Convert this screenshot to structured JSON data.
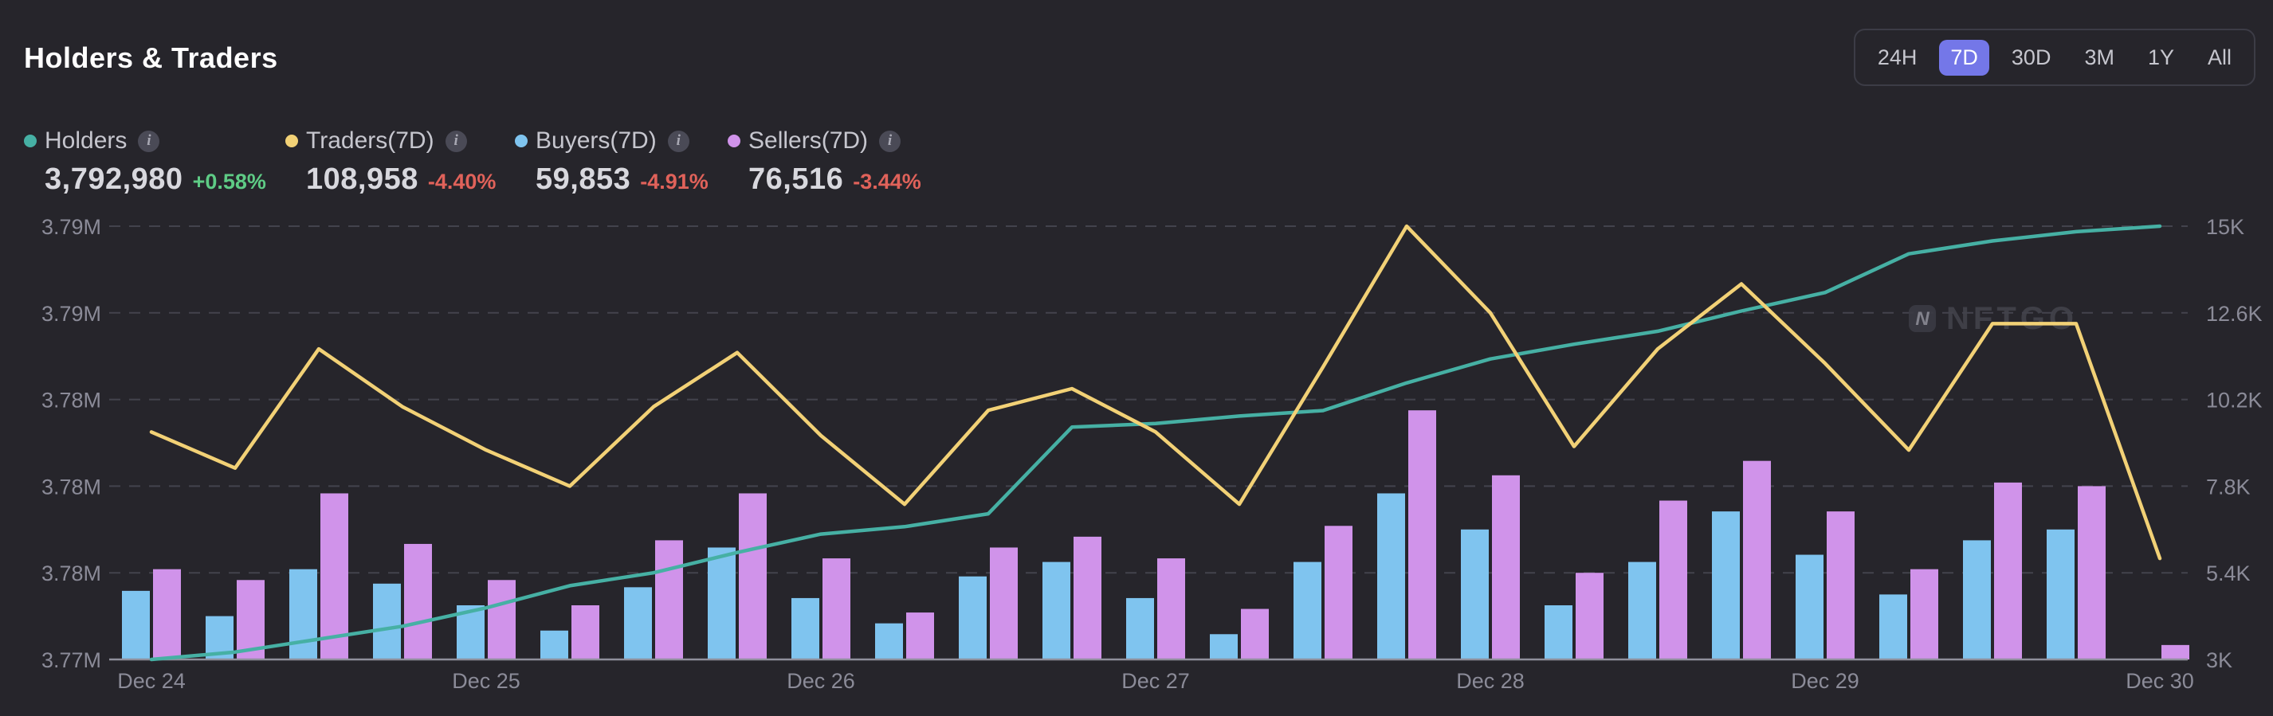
{
  "header": {
    "title": "Holders & Traders"
  },
  "range_selector": {
    "options": [
      "24H",
      "7D",
      "30D",
      "3M",
      "1Y",
      "All"
    ],
    "selected": "7D"
  },
  "legend": [
    {
      "id": "holders",
      "label": "Holders",
      "value": "3,792,980",
      "change": "+0.58%",
      "direction": "up",
      "color": "#46b0a4"
    },
    {
      "id": "traders",
      "label": "Traders(7D)",
      "value": "108,958",
      "change": "-4.40%",
      "direction": "down",
      "color": "#f2d176"
    },
    {
      "id": "buyers",
      "label": "Buyers(7D)",
      "value": "59,853",
      "change": "-4.91%",
      "direction": "down",
      "color": "#7fc4ef"
    },
    {
      "id": "sellers",
      "label": "Sellers(7D)",
      "value": "76,516",
      "change": "-3.44%",
      "direction": "down",
      "color": "#d093ea"
    }
  ],
  "colors": {
    "background": "#26252b",
    "up": "#5ecb85",
    "down": "#e0625a",
    "grid": "#43434d",
    "axis_line": "#8f8f9c",
    "tick_text": "#8b8b98",
    "selected_range_bg": "#7477e8",
    "watermark": "#42424b"
  },
  "watermark": {
    "logo": "N",
    "text": "NFTGO"
  },
  "chart_data": {
    "type": "combo",
    "x_tick_labels": [
      "Dec 24",
      "Dec 25",
      "Dec 26",
      "Dec 27",
      "Dec 28",
      "Dec 29",
      "Dec 30"
    ],
    "x_tick_positions": [
      0,
      4,
      8,
      12,
      16,
      20,
      24
    ],
    "bucket_count": 25,
    "buckets_per_day": 4,
    "left_axis": {
      "tick_labels_top_to_bottom": [
        "3.79M",
        "3.79M",
        "3.78M",
        "3.78M",
        "3.78M",
        "3.77M"
      ],
      "min": 3.7705,
      "max": 3.794,
      "unit": "M holders"
    },
    "right_axis": {
      "tick_labels_top_to_bottom": [
        "15K",
        "12.6K",
        "10.2K",
        "7.8K",
        "5.4K",
        "3K"
      ],
      "min": 3,
      "max": 15,
      "unit": "K traders"
    },
    "grid": "dashed-horizontal",
    "legend_position": "top-left",
    "series": [
      {
        "name": "Holders",
        "type": "line",
        "axis": "left",
        "color": "#46b0a4",
        "values": [
          3.7705,
          3.7709,
          3.7716,
          3.7723,
          3.7733,
          3.7745,
          3.7752,
          3.7763,
          3.7773,
          3.7777,
          3.7784,
          3.7831,
          3.7833,
          3.7837,
          3.784,
          3.7855,
          3.7868,
          3.7876,
          3.7883,
          3.7894,
          3.7904,
          3.7925,
          3.7932,
          3.7937,
          3.794
        ]
      },
      {
        "name": "Traders(7D)",
        "type": "line",
        "axis": "right",
        "color": "#f2d176",
        "values": [
          9.3,
          8.3,
          11.6,
          10.0,
          8.8,
          7.8,
          10.0,
          11.5,
          9.2,
          7.3,
          9.9,
          10.5,
          9.3,
          7.3,
          11.1,
          15.0,
          12.6,
          8.9,
          11.6,
          13.4,
          11.2,
          8.8,
          12.3,
          12.3,
          5.8
        ]
      },
      {
        "name": "Buyers(7D)",
        "type": "bar",
        "axis": "right",
        "color": "#7fc4ef",
        "values": [
          4.9,
          4.2,
          5.5,
          5.1,
          4.5,
          3.8,
          5.0,
          6.1,
          4.7,
          4.0,
          5.3,
          5.7,
          4.7,
          3.7,
          5.7,
          7.6,
          6.6,
          4.5,
          5.7,
          7.1,
          5.9,
          4.8,
          6.3,
          6.6,
          null
        ]
      },
      {
        "name": "Sellers(7D)",
        "type": "bar",
        "axis": "right",
        "color": "#d093ea",
        "values": [
          5.5,
          5.2,
          7.6,
          6.2,
          5.2,
          4.5,
          6.3,
          7.6,
          5.8,
          4.3,
          6.1,
          6.4,
          5.8,
          4.4,
          6.7,
          9.9,
          8.1,
          5.4,
          7.4,
          8.5,
          7.1,
          5.5,
          7.9,
          7.8,
          3.4
        ]
      }
    ]
  }
}
